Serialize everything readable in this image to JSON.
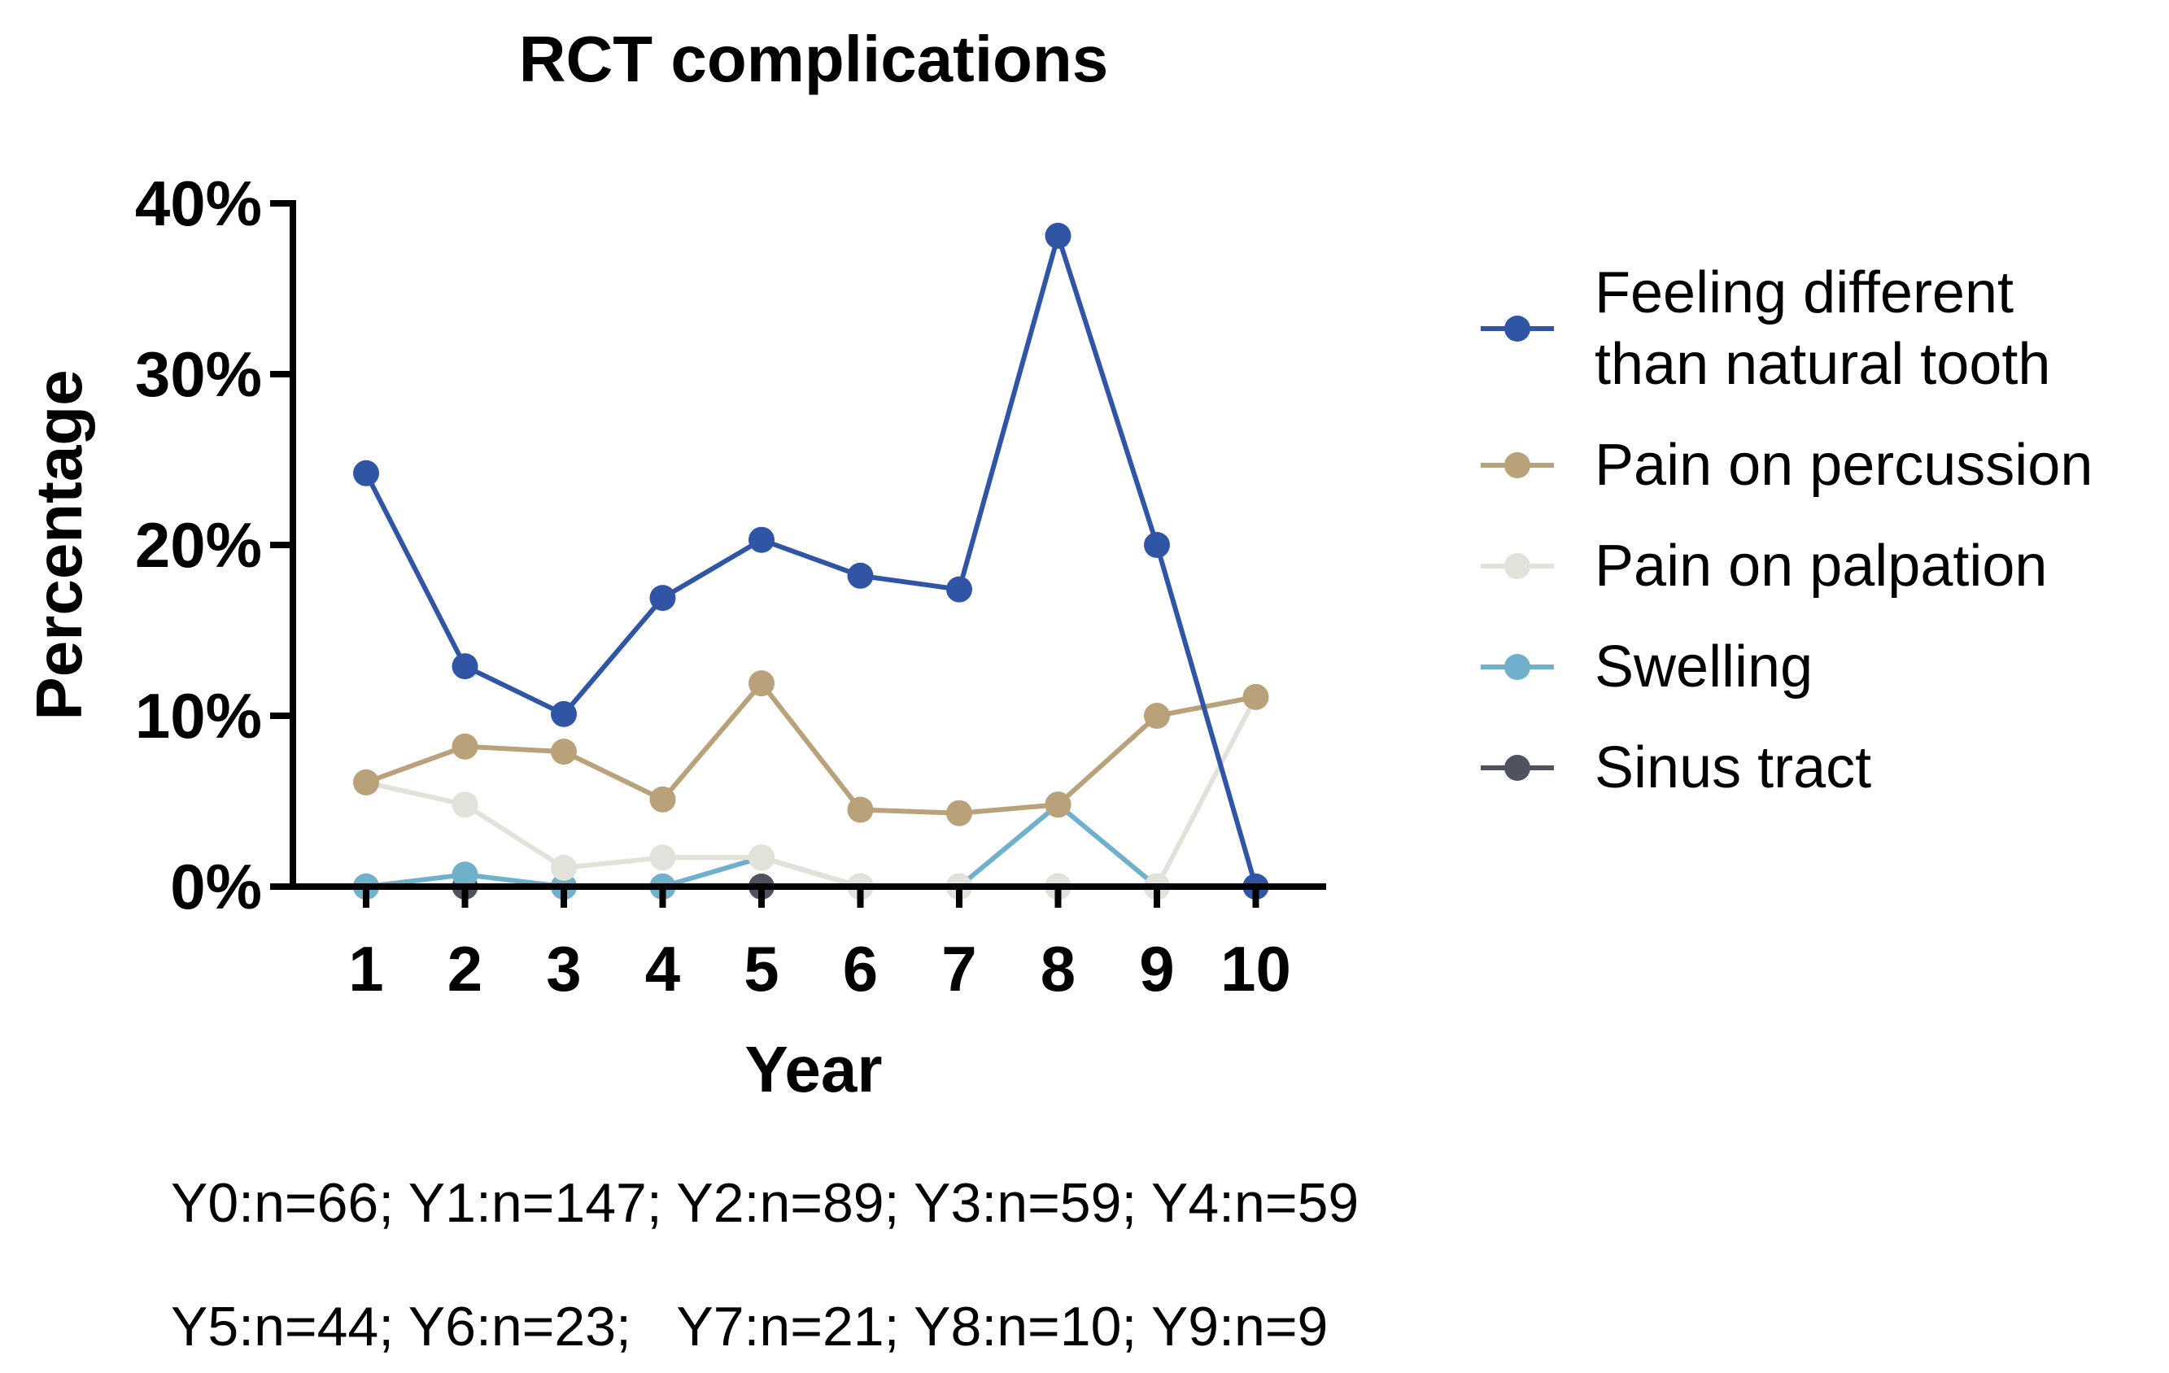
{
  "chart_data": {
    "type": "line",
    "title": "RCT complications",
    "xlabel": "Year",
    "ylabel": "Percentage",
    "categories": [
      "1",
      "2",
      "3",
      "4",
      "5",
      "6",
      "7",
      "8",
      "9",
      "10"
    ],
    "ylim": [
      0,
      40
    ],
    "yticks": [
      "0%",
      "10%",
      "20%",
      "30%",
      "40%"
    ],
    "ytick_values": [
      0,
      10,
      20,
      30,
      40
    ],
    "grid": false,
    "legend_position": "right",
    "series": [
      {
        "name": "Feeling different than natural tooth",
        "legend_lines": [
          "Feeling different",
          "than natural tooth"
        ],
        "color": "#2f55a4",
        "values": [
          24.2,
          12.9,
          10.1,
          16.9,
          20.3,
          18.2,
          17.4,
          38.1,
          20.0,
          0.0
        ]
      },
      {
        "name": "Pain on percussion",
        "legend_lines": [
          "Pain on percussion"
        ],
        "color": "#b9a27a",
        "values": [
          6.1,
          8.2,
          7.9,
          5.1,
          11.9,
          4.5,
          4.3,
          4.8,
          10.0,
          11.1
        ]
      },
      {
        "name": "Pain on palpation",
        "legend_lines": [
          "Pain on palpation"
        ],
        "color": "#e3e2da",
        "values": [
          6.1,
          4.8,
          1.1,
          1.7,
          1.7,
          0.0,
          0.0,
          0.0,
          0.0,
          11.1
        ]
      },
      {
        "name": "Swelling",
        "legend_lines": [
          "Swelling"
        ],
        "color": "#6fb0cc",
        "values": [
          0.0,
          0.7,
          0.0,
          0.0,
          1.7,
          0.0,
          0.0,
          4.8,
          0.0,
          null
        ]
      },
      {
        "name": "Sinus tract",
        "legend_lines": [
          "Sinus tract"
        ],
        "color": "#4f5360",
        "values": [
          0.0,
          0.0,
          0.0,
          0.0,
          0.0,
          0.0,
          0.0,
          0.0,
          0.0,
          0.0
        ]
      }
    ],
    "footnotes": [
      "Y0:n=66; Y1:n=147; Y2:n=89; Y3:n=59; Y4:n=59",
      "Y5:n=44; Y6:n=23;   Y7:n=21; Y8:n=10; Y9:n=9"
    ]
  }
}
